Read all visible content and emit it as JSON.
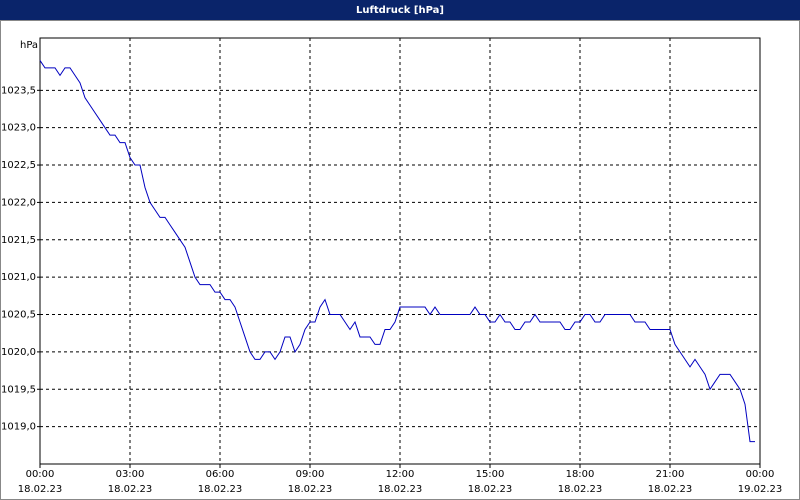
{
  "chart_data": {
    "type": "line",
    "title": "Luftdruck [hPa]",
    "y_label": "hPa",
    "x": [
      0,
      10,
      20,
      30,
      40,
      50,
      60,
      70,
      80,
      90,
      100,
      110,
      120,
      130,
      140,
      150,
      160,
      170,
      180,
      190,
      200,
      210,
      220,
      230,
      240,
      250,
      260,
      270,
      280,
      290,
      300,
      310,
      320,
      330,
      340,
      350,
      360,
      370,
      380,
      390,
      400,
      410,
      420,
      430,
      440,
      450,
      460,
      470,
      480,
      490,
      500,
      510,
      520,
      530,
      540,
      550,
      560,
      570,
      580,
      590,
      600,
      610,
      620,
      630,
      640,
      650,
      660,
      670,
      680,
      690,
      700,
      710,
      720,
      730,
      740,
      750,
      760,
      770,
      780,
      790,
      800,
      810,
      820,
      830,
      840,
      850,
      860,
      870,
      880,
      890,
      900,
      910,
      920,
      930,
      940,
      950,
      960,
      970,
      980,
      990,
      1000,
      1010,
      1020,
      1030,
      1040,
      1050,
      1060,
      1070,
      1080,
      1090,
      1100,
      1110,
      1120,
      1130,
      1140,
      1150,
      1160,
      1170,
      1180,
      1190,
      1200,
      1210,
      1220,
      1230,
      1240,
      1250,
      1260,
      1270,
      1280,
      1290,
      1300,
      1310,
      1320,
      1330,
      1340,
      1350,
      1360,
      1370,
      1380,
      1390,
      1400,
      1410,
      1420,
      1430
    ],
    "series": [
      {
        "color": "#0000c0",
        "values": [
          1023.9,
          1023.8,
          1023.8,
          1023.8,
          1023.7,
          1023.8,
          1023.8,
          1023.7,
          1023.6,
          1023.4,
          1023.3,
          1023.2,
          1023.1,
          1023.0,
          1022.9,
          1022.9,
          1022.8,
          1022.8,
          1022.6,
          1022.5,
          1022.5,
          1022.2,
          1022.0,
          1021.9,
          1021.8,
          1021.8,
          1021.7,
          1021.6,
          1021.5,
          1021.4,
          1021.2,
          1021.0,
          1020.9,
          1020.9,
          1020.9,
          1020.8,
          1020.8,
          1020.7,
          1020.7,
          1020.6,
          1020.4,
          1020.2,
          1020.0,
          1019.9,
          1019.9,
          1020.0,
          1020.0,
          1019.9,
          1020.0,
          1020.2,
          1020.2,
          1020.0,
          1020.1,
          1020.3,
          1020.4,
          1020.4,
          1020.6,
          1020.7,
          1020.5,
          1020.5,
          1020.5,
          1020.4,
          1020.3,
          1020.4,
          1020.2,
          1020.2,
          1020.2,
          1020.1,
          1020.1,
          1020.3,
          1020.3,
          1020.4,
          1020.6,
          1020.6,
          1020.6,
          1020.6,
          1020.6,
          1020.6,
          1020.5,
          1020.6,
          1020.5,
          1020.5,
          1020.5,
          1020.5,
          1020.5,
          1020.5,
          1020.5,
          1020.6,
          1020.5,
          1020.5,
          1020.4,
          1020.4,
          1020.5,
          1020.4,
          1020.4,
          1020.3,
          1020.3,
          1020.4,
          1020.4,
          1020.5,
          1020.4,
          1020.4,
          1020.4,
          1020.4,
          1020.4,
          1020.3,
          1020.3,
          1020.4,
          1020.4,
          1020.5,
          1020.5,
          1020.4,
          1020.4,
          1020.5,
          1020.5,
          1020.5,
          1020.5,
          1020.5,
          1020.5,
          1020.4,
          1020.4,
          1020.4,
          1020.3,
          1020.3,
          1020.3,
          1020.3,
          1020.3,
          1020.1,
          1020.0,
          1019.9,
          1019.8,
          1019.9,
          1019.8,
          1019.7,
          1019.5,
          1019.6,
          1019.7,
          1019.7,
          1019.7,
          1019.6,
          1019.5,
          1019.3,
          1018.8,
          1018.8
        ]
      }
    ],
    "xlim": [
      0,
      1440
    ],
    "xticks": [
      {
        "value": 0,
        "label": [
          "00:00",
          "18.02.23"
        ]
      },
      {
        "value": 180,
        "label": [
          "03:00",
          "18.02.23"
        ]
      },
      {
        "value": 360,
        "label": [
          "06:00",
          "18.02.23"
        ]
      },
      {
        "value": 540,
        "label": [
          "09:00",
          "18.02.23"
        ]
      },
      {
        "value": 720,
        "label": [
          "12:00",
          "18.02.23"
        ]
      },
      {
        "value": 900,
        "label": [
          "15:00",
          "18.02.23"
        ]
      },
      {
        "value": 1080,
        "label": [
          "18:00",
          "18.02.23"
        ]
      },
      {
        "value": 1260,
        "label": [
          "21:00",
          "18.02.23"
        ]
      },
      {
        "value": 1440,
        "label": [
          "00:00",
          "19.02.23"
        ]
      }
    ],
    "ylim": [
      1018.5,
      1024.2
    ],
    "yticks": [
      {
        "value": 1019,
        "label": "1019,0"
      },
      {
        "value": 1019.5,
        "label": "1019,5"
      },
      {
        "value": 1020,
        "label": "1020,0"
      },
      {
        "value": 1020.5,
        "label": "1020,5"
      },
      {
        "value": 1021,
        "label": "1021,0"
      },
      {
        "value": 1021.5,
        "label": "1021,5"
      },
      {
        "value": 1022,
        "label": "1022,0"
      },
      {
        "value": 1022.5,
        "label": "1022,5"
      },
      {
        "value": 1023,
        "label": "1023,0"
      },
      {
        "value": 1023.5,
        "label": "1023,5"
      }
    ],
    "grid": true
  }
}
